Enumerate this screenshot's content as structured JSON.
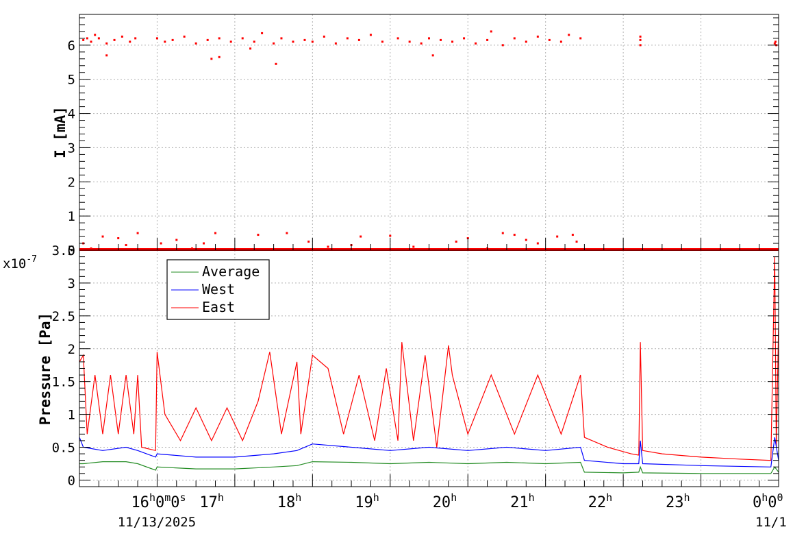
{
  "chart_data": [
    {
      "type": "scatter",
      "panel": "top",
      "ylabel": "I [mA]",
      "ylim": [
        0,
        6.9
      ],
      "yticks": [
        0,
        1,
        2,
        3,
        4,
        5,
        6
      ],
      "ytick_labels": [
        "0",
        "1",
        "2",
        "3",
        "4",
        "5",
        "6"
      ],
      "grid": true,
      "series": [
        {
          "color": "#ff0000",
          "points": [
            [
              15.05,
              6.15
            ],
            [
              15.1,
              6.2
            ],
            [
              15.15,
              6.1
            ],
            [
              15.25,
              6.2
            ],
            [
              15.35,
              6.05
            ],
            [
              15.45,
              6.15
            ],
            [
              15.55,
              6.25
            ],
            [
              15.65,
              6.1
            ],
            [
              15.72,
              6.2
            ],
            [
              15.35,
              5.7
            ],
            [
              15.2,
              6.3
            ],
            [
              16.0,
              6.2
            ],
            [
              16.1,
              6.1
            ],
            [
              16.2,
              6.15
            ],
            [
              16.35,
              6.25
            ],
            [
              16.5,
              6.05
            ],
            [
              16.65,
              6.15
            ],
            [
              16.8,
              6.2
            ],
            [
              16.95,
              6.1
            ],
            [
              16.7,
              5.6
            ],
            [
              16.8,
              5.65
            ],
            [
              17.1,
              6.2
            ],
            [
              17.25,
              6.1
            ],
            [
              17.35,
              6.35
            ],
            [
              17.5,
              6.05
            ],
            [
              17.6,
              6.2
            ],
            [
              17.75,
              6.1
            ],
            [
              17.9,
              6.15
            ],
            [
              17.53,
              5.45
            ],
            [
              17.2,
              5.9
            ],
            [
              18.0,
              6.1
            ],
            [
              18.15,
              6.25
            ],
            [
              18.3,
              6.05
            ],
            [
              18.45,
              6.2
            ],
            [
              18.6,
              6.15
            ],
            [
              18.75,
              6.3
            ],
            [
              18.9,
              6.1
            ],
            [
              19.1,
              6.2
            ],
            [
              19.25,
              6.1
            ],
            [
              19.4,
              6.05
            ],
            [
              19.5,
              6.2
            ],
            [
              19.55,
              5.7
            ],
            [
              19.65,
              6.15
            ],
            [
              19.8,
              6.1
            ],
            [
              19.95,
              6.2
            ],
            [
              20.1,
              6.05
            ],
            [
              20.25,
              6.15
            ],
            [
              20.3,
              6.4
            ],
            [
              20.45,
              6.0
            ],
            [
              20.6,
              6.2
            ],
            [
              20.75,
              6.1
            ],
            [
              20.9,
              6.25
            ],
            [
              21.05,
              6.15
            ],
            [
              21.2,
              6.1
            ],
            [
              21.3,
              6.3
            ],
            [
              21.45,
              6.2
            ],
            [
              22.22,
              6.15
            ],
            [
              22.22,
              6.0
            ],
            [
              22.22,
              6.25
            ],
            [
              23.95,
              6.05
            ],
            [
              23.96,
              6.1
            ],
            [
              23.97,
              6.0
            ],
            [
              15.05,
              0.2
            ],
            [
              15.15,
              0.05
            ],
            [
              15.3,
              0.4
            ],
            [
              15.5,
              0.35
            ],
            [
              15.6,
              0.15
            ],
            [
              15.75,
              0.5
            ],
            [
              16.05,
              0.2
            ],
            [
              16.25,
              0.3
            ],
            [
              16.45,
              0.05
            ],
            [
              16.6,
              0.2
            ],
            [
              16.75,
              0.5
            ],
            [
              17.3,
              0.45
            ],
            [
              17.67,
              0.5
            ],
            [
              17.95,
              0.25
            ],
            [
              18.2,
              0.1
            ],
            [
              18.5,
              0.15
            ],
            [
              18.62,
              0.4
            ],
            [
              19.0,
              0.42
            ],
            [
              19.3,
              0.1
            ],
            [
              19.85,
              0.25
            ],
            [
              20.0,
              0.35
            ],
            [
              20.25,
              0.05
            ],
            [
              20.45,
              0.5
            ],
            [
              20.6,
              0.45
            ],
            [
              20.75,
              0.3
            ],
            [
              20.9,
              0.2
            ],
            [
              21.15,
              0.4
            ],
            [
              21.35,
              0.45
            ],
            [
              21.4,
              0.25
            ]
          ]
        },
        {
          "color": "#ff0000",
          "baseline_y": 0.02,
          "x_range": [
            15.0,
            24.0
          ]
        }
      ]
    },
    {
      "type": "line",
      "panel": "bottom",
      "ylabel": "Pressure [Pa]",
      "yscale_label": "x10",
      "yscale_exponent": "-7",
      "ylim": [
        -0.1,
        3.5
      ],
      "yticks": [
        0,
        0.5,
        1,
        1.5,
        2,
        2.5,
        3,
        3.5
      ],
      "ytick_labels": [
        "0",
        "0.5",
        "1",
        "1.5",
        "2",
        "2.5",
        "3",
        "3.5"
      ],
      "xlim": [
        15.0,
        24.0
      ],
      "xticks": [
        16,
        17,
        18,
        19,
        20,
        21,
        22,
        23,
        24
      ],
      "xtick_main": [
        "16",
        "17",
        "18",
        "19",
        "20",
        "21",
        "22",
        "23",
        "0"
      ],
      "xtick_unit": "h",
      "xtick_first_suffix": [
        "0",
        "m",
        "0",
        "s"
      ],
      "xtick_last_suffix": [
        "0",
        "0"
      ],
      "date_labels": [
        "11/13/2025",
        "11/1"
      ],
      "grid": true,
      "legend": {
        "position": "top-left",
        "entries": [
          {
            "name": "Average",
            "color": "#228b22"
          },
          {
            "name": "West",
            "color": "#0000ff"
          },
          {
            "name": "East",
            "color": "#ff0000"
          }
        ]
      },
      "series": [
        {
          "name": "East",
          "color": "#ff0000",
          "x": [
            15.0,
            15.05,
            15.1,
            15.2,
            15.3,
            15.4,
            15.5,
            15.6,
            15.7,
            15.75,
            15.8,
            15.98,
            16.0,
            16.1,
            16.3,
            16.5,
            16.7,
            16.9,
            17.1,
            17.3,
            17.45,
            17.6,
            17.8,
            17.85,
            18.0,
            18.2,
            18.4,
            18.6,
            18.8,
            18.95,
            19.1,
            19.15,
            19.3,
            19.45,
            19.6,
            19.75,
            19.8,
            20.0,
            20.3,
            20.6,
            20.9,
            21.2,
            21.45,
            21.5,
            21.8,
            22.1,
            22.2,
            22.22,
            22.25,
            22.5,
            23.0,
            23.5,
            23.9,
            23.95,
            23.97,
            24.0
          ],
          "y": [
            1.8,
            1.9,
            0.7,
            1.6,
            0.7,
            1.6,
            0.7,
            1.6,
            0.7,
            1.6,
            0.5,
            0.45,
            1.95,
            1.0,
            0.6,
            1.1,
            0.6,
            1.1,
            0.6,
            1.2,
            1.95,
            0.7,
            1.8,
            0.7,
            1.9,
            1.7,
            0.7,
            1.6,
            0.6,
            1.7,
            0.6,
            2.1,
            0.6,
            1.9,
            0.5,
            2.05,
            1.6,
            0.7,
            1.6,
            0.7,
            1.6,
            0.7,
            1.6,
            0.65,
            0.5,
            0.4,
            0.38,
            2.1,
            0.45,
            0.4,
            0.35,
            0.32,
            0.3,
            3.4,
            0.5,
            2.4
          ]
        },
        {
          "name": "West",
          "color": "#0000ff",
          "x": [
            15.0,
            15.05,
            15.3,
            15.6,
            15.75,
            15.98,
            16.0,
            16.5,
            17.0,
            17.5,
            17.8,
            18.0,
            18.5,
            19.0,
            19.5,
            20.0,
            20.5,
            21.0,
            21.45,
            21.5,
            22.0,
            22.2,
            22.22,
            22.25,
            23.0,
            23.9,
            23.95,
            24.0
          ],
          "y": [
            0.65,
            0.5,
            0.45,
            0.5,
            0.45,
            0.35,
            0.4,
            0.35,
            0.35,
            0.4,
            0.45,
            0.55,
            0.5,
            0.45,
            0.5,
            0.45,
            0.5,
            0.45,
            0.5,
            0.3,
            0.25,
            0.25,
            0.6,
            0.25,
            0.22,
            0.2,
            0.65,
            0.3
          ]
        },
        {
          "name": "Average",
          "color": "#228b22",
          "x": [
            15.0,
            15.05,
            15.3,
            15.6,
            15.75,
            15.98,
            16.0,
            16.5,
            17.0,
            17.5,
            17.8,
            18.0,
            18.5,
            19.0,
            19.5,
            20.0,
            20.5,
            21.0,
            21.45,
            21.5,
            22.0,
            22.2,
            22.22,
            22.25,
            23.0,
            23.9,
            23.95,
            24.0
          ],
          "y": [
            0.25,
            0.25,
            0.28,
            0.28,
            0.25,
            0.15,
            0.2,
            0.17,
            0.17,
            0.2,
            0.22,
            0.28,
            0.27,
            0.25,
            0.27,
            0.25,
            0.27,
            0.25,
            0.27,
            0.12,
            0.11,
            0.12,
            0.2,
            0.11,
            0.1,
            0.1,
            0.2,
            0.12
          ]
        }
      ]
    }
  ]
}
